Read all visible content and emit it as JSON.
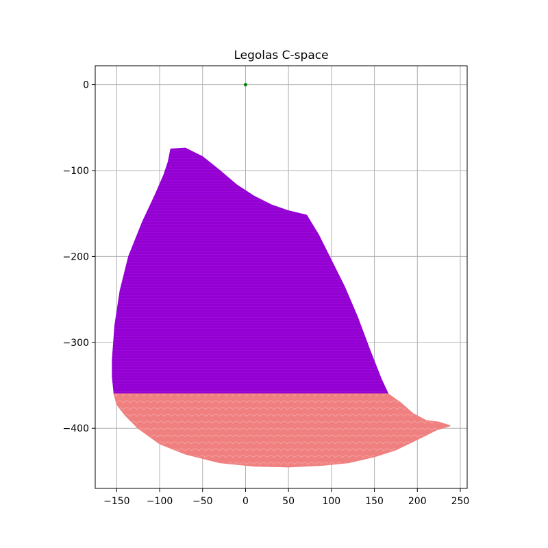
{
  "chart_data": {
    "type": "scatter",
    "title": "Legolas C-space",
    "xlabel": "",
    "ylabel": "",
    "xlim": [
      -175,
      258
    ],
    "ylim": [
      -470,
      22
    ],
    "xticks": [
      -150,
      -100,
      -50,
      0,
      50,
      100,
      150,
      200,
      250
    ],
    "xtick_labels": [
      "−150",
      "−100",
      "−50",
      "0",
      "50",
      "100",
      "150",
      "200",
      "250"
    ],
    "yticks": [
      0,
      -100,
      -200,
      -300,
      -400
    ],
    "ytick_labels": [
      "0",
      "−100",
      "−200",
      "−300",
      "−400"
    ],
    "grid": true,
    "legend": "none",
    "colors": {
      "upper_region": "#9400D3",
      "lower_region": "#F08080",
      "origin_point": "#008000",
      "grid": "#b0b0b0"
    },
    "series": [
      {
        "color": "#9400D3",
        "kind": "region",
        "boundary": [
          [
            -87,
            -75
          ],
          [
            -70,
            -74
          ],
          [
            -50,
            -84
          ],
          [
            -30,
            -100
          ],
          [
            -10,
            -117
          ],
          [
            10,
            -130
          ],
          [
            30,
            -140
          ],
          [
            50,
            -147
          ],
          [
            71,
            -152
          ],
          [
            85,
            -175
          ],
          [
            100,
            -205
          ],
          [
            115,
            -235
          ],
          [
            130,
            -270
          ],
          [
            145,
            -310
          ],
          [
            158,
            -343
          ],
          [
            166,
            -360
          ],
          [
            -153,
            -360
          ],
          [
            -155,
            -340
          ],
          [
            -155,
            -320
          ],
          [
            -152,
            -280
          ],
          [
            -146,
            -240
          ],
          [
            -136,
            -200
          ],
          [
            -120,
            -160
          ],
          [
            -105,
            -128
          ],
          [
            -95,
            -105
          ],
          [
            -90,
            -90
          ]
        ]
      },
      {
        "color": "#F08080",
        "kind": "region",
        "boundary": [
          [
            -153,
            -360
          ],
          [
            166,
            -360
          ],
          [
            180,
            -370
          ],
          [
            195,
            -383
          ],
          [
            210,
            -391
          ],
          [
            225,
            -393
          ],
          [
            238,
            -397
          ],
          [
            222,
            -402
          ],
          [
            200,
            -413
          ],
          [
            175,
            -425
          ],
          [
            150,
            -433
          ],
          [
            120,
            -440
          ],
          [
            90,
            -443
          ],
          [
            50,
            -445
          ],
          [
            10,
            -444
          ],
          [
            -30,
            -440
          ],
          [
            -70,
            -430
          ],
          [
            -100,
            -418
          ],
          [
            -125,
            -400
          ],
          [
            -140,
            -385
          ],
          [
            -150,
            -372
          ]
        ]
      },
      {
        "color": "#008000",
        "kind": "point",
        "points": [
          [
            0,
            0
          ]
        ]
      }
    ]
  }
}
